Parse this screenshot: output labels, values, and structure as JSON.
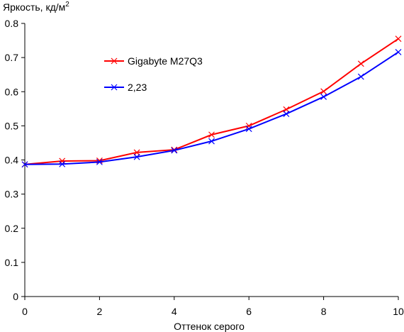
{
  "chart_data": {
    "type": "line",
    "ylabel": "Яркость, кд/м",
    "ylabel_sup": "2",
    "xlabel": "Оттенок серого",
    "xlim": [
      0,
      10
    ],
    "ylim": [
      0,
      0.8
    ],
    "xticks": [
      "0",
      "2",
      "4",
      "6",
      "8",
      "10"
    ],
    "yticks": [
      "0",
      "0.1",
      "0.2",
      "0.3",
      "0.4",
      "0.5",
      "0.6",
      "0.7",
      "0.8"
    ],
    "grid": false,
    "legend_position": "upper-left-inside",
    "x": [
      0,
      1,
      2,
      3,
      4,
      5,
      6,
      7,
      8,
      9,
      10
    ],
    "series": [
      {
        "name": "Gigabyte M27Q3",
        "color": "#ff0000",
        "marker": "x",
        "values": [
          0.387,
          0.397,
          0.398,
          0.422,
          0.43,
          0.474,
          0.5,
          0.548,
          0.601,
          0.682,
          0.755
        ]
      },
      {
        "name": "2,23",
        "color": "#0000ff",
        "marker": "x",
        "values": [
          0.387,
          0.388,
          0.394,
          0.409,
          0.428,
          0.455,
          0.491,
          0.535,
          0.585,
          0.644,
          0.716
        ]
      }
    ]
  }
}
